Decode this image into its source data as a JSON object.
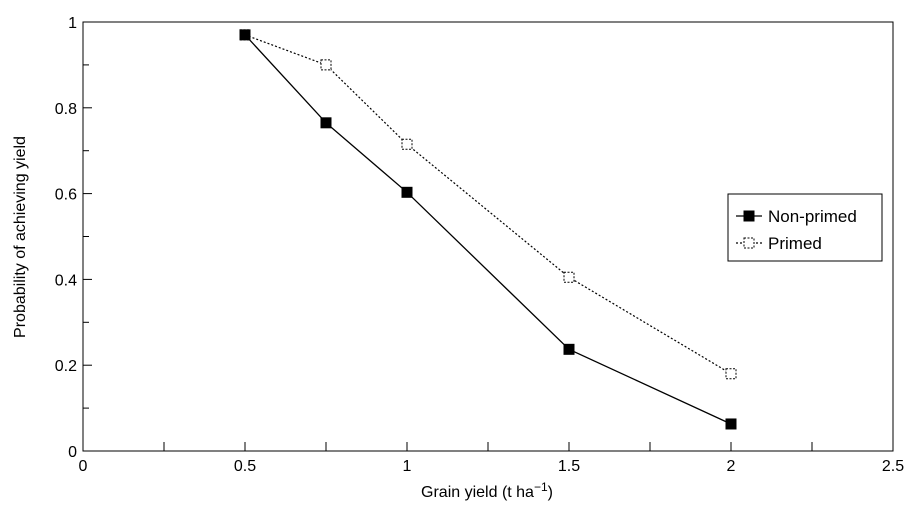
{
  "chart_data": {
    "type": "line",
    "title": "",
    "xlabel": "Grain yield (t ha",
    "xlabel_sup": "−1",
    "xlabel_close": ")",
    "ylabel": "Probability of achieving yield",
    "xlim": [
      0,
      2.5
    ],
    "ylim": [
      0,
      1
    ],
    "xticks": [
      0,
      0.5,
      1,
      1.5,
      2,
      2.5
    ],
    "xtick_labels": [
      "0",
      "0.5",
      "1",
      "1.5",
      "2",
      "2.5"
    ],
    "xminor": [
      0.25,
      0.75,
      1.25,
      1.75,
      2.25
    ],
    "yticks": [
      0,
      0.2,
      0.4,
      0.6,
      0.8,
      1
    ],
    "ytick_labels": [
      "0",
      "0.2",
      "0.4",
      "0.6",
      "0.8",
      "1"
    ],
    "yminor": [
      0.1,
      0.3,
      0.5,
      0.7,
      0.9
    ],
    "grid": false,
    "legend_position": "right",
    "series": [
      {
        "name": "Non-primed",
        "marker": "filled-square",
        "line": "solid",
        "color": "#000000",
        "x": [
          0.5,
          0.75,
          1,
          1.5,
          2
        ],
        "y": [
          0.97,
          0.765,
          0.603,
          0.237,
          0.063
        ]
      },
      {
        "name": "Primed",
        "marker": "open-square",
        "line": "dotted",
        "color": "#000000",
        "x": [
          0.5,
          0.75,
          1,
          1.5,
          2
        ],
        "y": [
          0.97,
          0.9,
          0.715,
          0.405,
          0.18
        ]
      }
    ]
  }
}
